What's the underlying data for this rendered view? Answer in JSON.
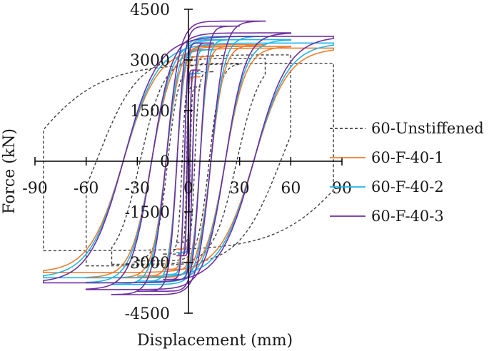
{
  "chart_data": {
    "type": "line",
    "title": "",
    "xlabel": "Displacement (mm)",
    "ylabel": "Force (kN)",
    "xlim": [
      -90,
      90
    ],
    "ylim": [
      -4500,
      4500
    ],
    "x_ticks": [
      -90,
      -60,
      -30,
      0,
      30,
      60,
      90
    ],
    "x_tick_labels": [
      "-90",
      "-60",
      "-30",
      "0",
      "30",
      "60",
      "90"
    ],
    "y_ticks": [
      -4500,
      -3000,
      -1500,
      0,
      1500,
      3000,
      4500
    ],
    "y_tick_labels": [
      "-4500",
      "-3000",
      "-1500",
      "0",
      "1500",
      "3000",
      "4500"
    ],
    "grid": false,
    "legend_position": "right",
    "series": [
      {
        "name": "60-Unstiffened",
        "color": "#404040",
        "dash": "dashed",
        "cycles": [
          {
            "amp": 7,
            "fmax": 2200,
            "fmin": -2400,
            "k": 0.35
          },
          {
            "amp": 15,
            "fmax": 2650,
            "fmin": -2750,
            "k": 0.55
          },
          {
            "amp": 30,
            "fmax": 2900,
            "fmin": -2950,
            "k": 0.9
          },
          {
            "amp": 45,
            "fmax": 3050,
            "fmin": -3050,
            "k": 1.4
          },
          {
            "amp": 60,
            "fmax": 3150,
            "fmin": -3100,
            "k": 2.0
          },
          {
            "amp": 85,
            "fmax": 2900,
            "fmin": -2650,
            "k": 2.6
          }
        ]
      },
      {
        "name": "60-F-40-1",
        "color": "#ED7D31",
        "dash": "solid",
        "cycles": [
          {
            "amp": 7,
            "fmax": 2500,
            "fmin": -2600,
            "k": 0.25
          },
          {
            "amp": 15,
            "fmax": 3100,
            "fmin": -3200,
            "k": 0.35
          },
          {
            "amp": 30,
            "fmax": 3400,
            "fmin": -3400,
            "k": 0.5
          },
          {
            "amp": 45,
            "fmax": 3450,
            "fmin": -3450,
            "k": 0.65
          },
          {
            "amp": 60,
            "fmax": 3400,
            "fmin": -3450,
            "k": 0.8
          },
          {
            "amp": 85,
            "fmax": 3350,
            "fmin": -3300,
            "k": 1.0
          }
        ]
      },
      {
        "name": "60-F-40-2",
        "color": "#20B5E8",
        "dash": "solid",
        "cycles": [
          {
            "amp": 7,
            "fmax": 2600,
            "fmin": -2700,
            "k": 0.25
          },
          {
            "amp": 15,
            "fmax": 3300,
            "fmin": -3350,
            "k": 0.35
          },
          {
            "amp": 30,
            "fmax": 3600,
            "fmin": -3550,
            "k": 0.5
          },
          {
            "amp": 45,
            "fmax": 3700,
            "fmin": -3650,
            "k": 0.65
          },
          {
            "amp": 60,
            "fmax": 3600,
            "fmin": -3600,
            "k": 0.8
          },
          {
            "amp": 85,
            "fmax": 3500,
            "fmin": -3450,
            "k": 1.0
          }
        ]
      },
      {
        "name": "60-F-40-3",
        "color": "#7030A0",
        "dash": "solid",
        "cycles": [
          {
            "amp": 7,
            "fmax": 2700,
            "fmin": -2800,
            "k": 0.25
          },
          {
            "amp": 15,
            "fmax": 3500,
            "fmin": -3500,
            "k": 0.35
          },
          {
            "amp": 30,
            "fmax": 4000,
            "fmin": -3850,
            "k": 0.5
          },
          {
            "amp": 45,
            "fmax": 4150,
            "fmin": -3950,
            "k": 0.65
          },
          {
            "amp": 60,
            "fmax": 3800,
            "fmin": -3800,
            "k": 0.8
          },
          {
            "amp": 85,
            "fmax": 3700,
            "fmin": -3600,
            "k": 1.0
          }
        ]
      }
    ]
  }
}
